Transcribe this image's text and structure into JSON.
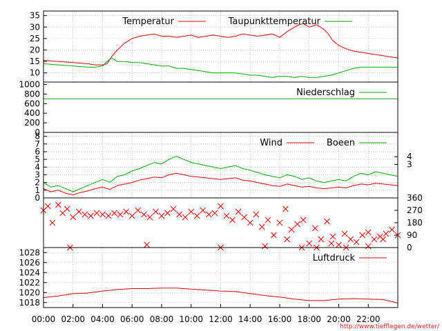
{
  "chart_data": {
    "type": "line",
    "x_labels": [
      "00:00",
      "02:00",
      "04:00",
      "06:00",
      "08:00",
      "10:00",
      "12:00",
      "14:00",
      "16:00",
      "18:00",
      "20:00",
      "22:00"
    ],
    "credit": "http://www.tiefflegen.de/wetter/",
    "colors": {
      "red": "#dd0000",
      "green": "#00aa00",
      "grid": "#999999"
    },
    "panels": [
      {
        "id": "temperature",
        "y_ticks": [
          "10",
          "15",
          "20",
          "25",
          "30",
          "35"
        ],
        "ylim": [
          6,
          37
        ],
        "grid": true,
        "series": [
          {
            "name": "Temperatur",
            "color": "#dd0000",
            "x": [
              0,
              1,
              2,
              3,
              3.5,
              4,
              4.3,
              4.6,
              5,
              5.5,
              6,
              6.5,
              7,
              7.5,
              8,
              8.5,
              9,
              9.5,
              10,
              10.5,
              11,
              11.5,
              12,
              12.5,
              13,
              13.5,
              14,
              14.5,
              15,
              15.5,
              16,
              16.5,
              17,
              17.3,
              17.6,
              18,
              18.5,
              19,
              19.3,
              19.6,
              20,
              20.5,
              21,
              21.5,
              22,
              22.5,
              23,
              23.5,
              24
            ],
            "values": [
              15.5,
              15,
              14.5,
              14,
              13.5,
              13.5,
              14,
              17,
              20,
              23,
              25,
              26,
              26.5,
              27,
              26,
              26,
              25.5,
              26,
              26.5,
              25.5,
              26,
              26.5,
              26,
              25.5,
              26,
              27,
              26.5,
              26,
              26.5,
              27,
              25.5,
              28,
              30,
              31,
              31.5,
              30,
              31,
              29,
              27,
              24,
              22,
              20.5,
              19.5,
              19,
              18.5,
              18,
              17.5,
              17,
              16.5
            ]
          },
          {
            "name": "Taupunkttemperatur",
            "color": "#00aa00",
            "x": [
              0,
              1,
              2,
              3,
              3.5,
              4,
              4.3,
              4.6,
              5,
              5.5,
              6,
              6.5,
              7,
              7.5,
              8,
              8.5,
              9,
              9.5,
              10,
              10.5,
              11,
              11.5,
              12,
              12.5,
              13,
              13.5,
              14,
              14.5,
              15,
              15.5,
              16,
              16.5,
              17,
              17.5,
              18,
              18.5,
              19,
              19.5,
              20,
              20.5,
              21,
              21.5,
              22,
              22.5,
              23,
              23.5,
              24
            ],
            "values": [
              14,
              13.5,
              13,
              12.5,
              12.5,
              13,
              15,
              16.5,
              15,
              15,
              14.5,
              14.5,
              14,
              13.5,
              13,
              13,
              12,
              12,
              11.5,
              11,
              10.5,
              10,
              10,
              10,
              10,
              9.5,
              9,
              9,
              8.5,
              8,
              8.5,
              8.5,
              8,
              8.5,
              8,
              8,
              8.5,
              9,
              10,
              11,
              12,
              12.5,
              12.5,
              12.5,
              12.5,
              12.5,
              12.5
            ]
          }
        ]
      },
      {
        "id": "precipitation",
        "y_ticks": [
          "0",
          "200",
          "400",
          "600",
          "800",
          "1000"
        ],
        "ylim": [
          0,
          1050
        ],
        "grid": false,
        "series": [
          {
            "name": "Niederschlag",
            "color": "#00aa00",
            "x": [
              0,
              24
            ],
            "values": [
              700,
              700
            ]
          }
        ]
      },
      {
        "id": "wind",
        "y_ticks": [
          "0",
          "1",
          "2",
          "3",
          "4",
          "5",
          "6",
          "7",
          "8"
        ],
        "y_ticks_right": [
          "3",
          "4"
        ],
        "ylim": [
          0,
          8.5
        ],
        "grid": true,
        "series": [
          {
            "name": "Wind",
            "color": "#dd0000",
            "x": [
              0,
              0.5,
              1,
              1.5,
              2,
              2.5,
              3,
              3.5,
              4,
              4.5,
              5,
              5.5,
              6,
              6.5,
              7,
              7.5,
              8,
              8.5,
              9,
              9.5,
              10,
              10.5,
              11,
              11.5,
              12,
              12.5,
              13,
              13.5,
              14,
              14.5,
              15,
              15.5,
              16,
              16.5,
              17,
              17.5,
              18,
              18.5,
              19,
              19.5,
              20,
              20.5,
              21,
              21.5,
              22,
              22.5,
              23,
              23.5,
              24
            ],
            "values": [
              1.2,
              0.8,
              1.0,
              0.6,
              0.4,
              0.7,
              0.9,
              1.2,
              1.4,
              1.1,
              1.6,
              1.8,
              2.0,
              2.3,
              2.5,
              2.7,
              2.6,
              3.0,
              3.2,
              3.0,
              2.8,
              2.7,
              2.6,
              2.5,
              2.4,
              2.5,
              2.6,
              2.3,
              2.2,
              2.0,
              1.8,
              1.6,
              1.5,
              1.8,
              1.6,
              1.4,
              1.5,
              1.3,
              1.2,
              1.3,
              1.4,
              1.3,
              1.6,
              1.8,
              1.7,
              1.9,
              1.8,
              1.7,
              1.6
            ]
          },
          {
            "name": "Boeen",
            "color": "#00aa00",
            "x": [
              0,
              0.5,
              1,
              1.5,
              2,
              2.5,
              3,
              3.5,
              4,
              4.5,
              5,
              5.5,
              6,
              6.5,
              7,
              7.5,
              8,
              8.5,
              9,
              9.5,
              10,
              10.5,
              11,
              11.5,
              12,
              12.5,
              13,
              13.5,
              14,
              14.5,
              15,
              15.5,
              16,
              16.5,
              17,
              17.5,
              18,
              18.5,
              19,
              19.5,
              20,
              20.5,
              21,
              21.5,
              22,
              22.5,
              23,
              23.5,
              24
            ],
            "values": [
              2.0,
              1.4,
              1.6,
              1.2,
              0.8,
              1.2,
              1.6,
              2.0,
              2.4,
              2.0,
              2.8,
              3.0,
              3.5,
              3.8,
              4.2,
              4.6,
              4.4,
              5.0,
              5.4,
              5.0,
              4.6,
              4.4,
              4.2,
              4.0,
              3.8,
              4.0,
              4.2,
              3.8,
              3.6,
              3.3,
              3.0,
              2.8,
              2.6,
              3.0,
              2.8,
              2.4,
              2.6,
              2.2,
              2.0,
              2.2,
              2.4,
              2.2,
              2.8,
              3.2,
              3.0,
              3.4,
              3.2,
              3.0,
              2.8
            ]
          }
        ]
      },
      {
        "id": "wind_direction",
        "y_ticks_right": [
          "0",
          "90",
          "180",
          "270",
          "360"
        ],
        "ylim": [
          0,
          360
        ],
        "grid": false,
        "marker": "x",
        "series": [
          {
            "name": "",
            "color": "#dd0000",
            "x": [
              0,
              0.3,
              0.6,
              1,
              1.3,
              1.6,
              2,
              2.4,
              2.8,
              3.2,
              3.6,
              4,
              4.4,
              4.8,
              5.2,
              5.6,
              6,
              6.4,
              6.8,
              7.2,
              7.6,
              8,
              8.4,
              8.8,
              9.2,
              9.6,
              10,
              10.4,
              10.8,
              11.2,
              11.6,
              12,
              12.4,
              12.8,
              13.2,
              13.6,
              14,
              14.4,
              14.8,
              15.2,
              15.6,
              16,
              16.4,
              16.8,
              17.2,
              17.6,
              18,
              18.4,
              18.8,
              19.2,
              19.6,
              20,
              20.4,
              20.8,
              21.2,
              21.6,
              22,
              22.4,
              22.8,
              23.2,
              23.6,
              24
            ],
            "values": [
              270,
              300,
              180,
              310,
              250,
              280,
              220,
              260,
              240,
              230,
              250,
              240,
              230,
              250,
              240,
              260,
              230,
              270,
              240,
              220,
              260,
              230,
              250,
              280,
              240,
              220,
              260,
              230,
              270,
              240,
              250,
              300,
              230,
              200,
              260,
              220,
              180,
              240,
              150,
              200,
              90,
              180,
              280,
              130,
              170,
              200,
              30,
              140,
              60,
              190,
              80,
              20,
              100,
              60,
              40,
              90,
              110,
              60,
              80,
              100,
              130,
              90
            ]
          },
          {
            "name": "",
            "color": "#dd0000",
            "x": [
              1.8,
              7,
              12,
              15,
              16.5,
              17.5,
              18.5,
              19.5,
              20.5,
              22,
              23
            ],
            "values": [
              0,
              20,
              0,
              10,
              60,
              0,
              0,
              30,
              0,
              10,
              60
            ]
          }
        ]
      },
      {
        "id": "pressure",
        "y_ticks": [
          "1018",
          "1020",
          "1022",
          "1024",
          "1026",
          "1028"
        ],
        "ylim": [
          1017,
          1029
        ],
        "grid": true,
        "series": [
          {
            "name": "Luftdruck",
            "color": "#dd0000",
            "x": [
              0,
              1,
              2,
              3,
              4,
              5,
              6,
              7,
              8,
              9,
              10,
              11,
              12,
              13,
              14,
              15,
              16,
              17,
              18,
              19,
              20,
              21,
              22,
              23,
              24
            ],
            "values": [
              1019,
              1019.3,
              1019.8,
              1019.9,
              1020.3,
              1020.6,
              1020.8,
              1020.8,
              1020.9,
              1020.9,
              1020.7,
              1020.5,
              1020.3,
              1020.2,
              1019.8,
              1019.4,
              1019.1,
              1018.7,
              1018.4,
              1018.4,
              1018.7,
              1018.8,
              1018.7,
              1018.6,
              1017.9
            ]
          }
        ]
      }
    ]
  }
}
